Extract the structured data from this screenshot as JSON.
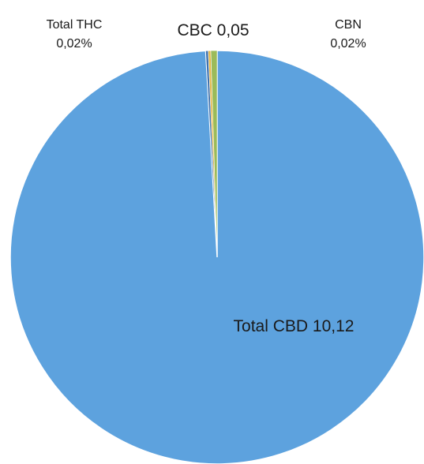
{
  "chart_data": {
    "type": "pie",
    "title": "",
    "slices": [
      {
        "label": "Total CBD 10,12",
        "name": "Total CBD",
        "value": 10.12,
        "color": "#5DA2DE"
      },
      {
        "label": "CBN\n0,02%",
        "name": "CBN",
        "value": 0.02,
        "color": "#3F72AF"
      },
      {
        "label": "Total THC\n0,02%",
        "name": "Total THC",
        "value": 0.02,
        "color": "#E6B84A"
      },
      {
        "label": "CBC 0,05",
        "name": "CBC",
        "value": 0.05,
        "color": "#9BBB59"
      }
    ],
    "legend": "none"
  }
}
